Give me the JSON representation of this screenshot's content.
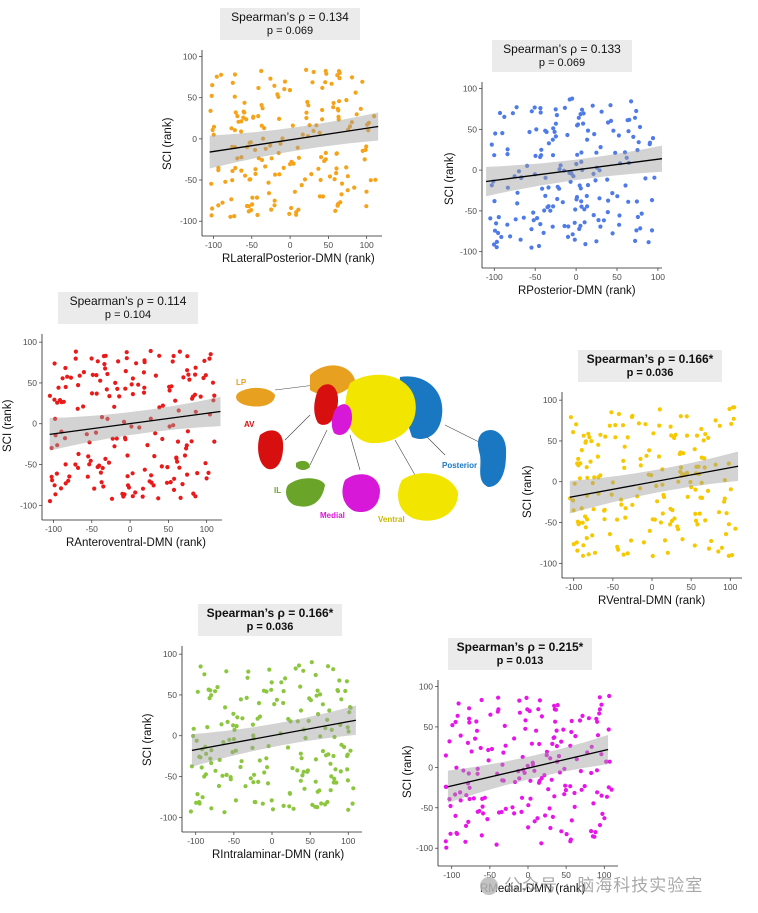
{
  "chart_data": [
    {
      "id": "p1",
      "type": "scatter",
      "color": "#f5a31a",
      "title": "Spearman’s ρ = 0.134",
      "subtitle": "p = 0.069",
      "significant": false,
      "xlabel": "RLateralPosterior-DMN (rank)",
      "ylabel": "SCI (rank)",
      "xlim": [
        -115,
        120
      ],
      "ylim": [
        -118,
        108
      ],
      "xticks": [
        -100,
        -50,
        0,
        50,
        100
      ],
      "yticks": [
        -100,
        -50,
        0,
        50,
        100
      ],
      "fit": {
        "x0": -105,
        "y0": -16,
        "x1": 115,
        "y1": 15,
        "ci": [
          20,
          10,
          17
        ]
      },
      "seed": 11
    },
    {
      "id": "p2",
      "type": "scatter",
      "color": "#4f7be8",
      "title": "Spearman’s ρ = 0.133",
      "subtitle": "p = 0.069",
      "significant": false,
      "xlabel": "RPosterior-DMN (rank)",
      "ylabel": "SCI (rank)",
      "xlim": [
        -115,
        105
      ],
      "ylim": [
        -120,
        108
      ],
      "xticks": [
        -100,
        -50,
        0,
        50,
        100
      ],
      "yticks": [
        -100,
        -50,
        0,
        50,
        100
      ],
      "fit": {
        "x0": -110,
        "y0": -14,
        "x1": 105,
        "y1": 14,
        "ci": [
          18,
          8,
          16
        ]
      },
      "seed": 22
    },
    {
      "id": "p3",
      "type": "scatter",
      "color": "#e81a1a",
      "title": "Spearman’s ρ = 0.114",
      "subtitle": "p = 0.104",
      "significant": false,
      "xlabel": "RAnteroventral-DMN (rank)",
      "ylabel": "SCI (rank)",
      "xlim": [
        -115,
        120
      ],
      "ylim": [
        -118,
        110
      ],
      "xticks": [
        -100,
        -50,
        0,
        50,
        100
      ],
      "yticks": [
        -100,
        -50,
        0,
        50,
        100
      ],
      "fit": {
        "x0": -105,
        "y0": -13,
        "x1": 118,
        "y1": 15,
        "ci": [
          20,
          9,
          18
        ]
      },
      "seed": 33
    },
    {
      "id": "p4",
      "type": "scatter",
      "color": "#f5c800",
      "title": "Spearman’s ρ = 0.166*",
      "subtitle": "p = 0.036",
      "significant": true,
      "xlabel": "RVentral-DMN (rank)",
      "ylabel": "SCI (rank)",
      "xlim": [
        -115,
        115
      ],
      "ylim": [
        -118,
        110
      ],
      "xticks": [
        -100,
        -50,
        0,
        50,
        100
      ],
      "yticks": [
        -100,
        -50,
        0,
        50,
        100
      ],
      "fit": {
        "x0": -105,
        "y0": -19,
        "x1": 110,
        "y1": 19,
        "ci": [
          20,
          9,
          18
        ]
      },
      "seed": 44
    },
    {
      "id": "p5",
      "type": "scatter",
      "color": "#8cc63f",
      "title": "Spearman’s ρ = 0.166*",
      "subtitle": "p = 0.036",
      "significant": true,
      "xlabel": "RIntralaminar-DMN (rank)",
      "ylabel": "SCI (rank)",
      "xlim": [
        -118,
        118
      ],
      "ylim": [
        -118,
        110
      ],
      "xticks": [
        -100,
        -50,
        0,
        50,
        100
      ],
      "yticks": [
        -100,
        -50,
        0,
        50,
        100
      ],
      "fit": {
        "x0": -105,
        "y0": -18,
        "x1": 110,
        "y1": 19,
        "ci": [
          20,
          9,
          18
        ]
      },
      "seed": 55
    },
    {
      "id": "p6",
      "type": "scatter",
      "color": "#e815e8",
      "title": "Spearman’s ρ = 0.215*",
      "subtitle": "p = 0.013",
      "significant": true,
      "xlabel": "RMedial-DMN (rank)",
      "ylabel": "SCI (rank)",
      "xlim": [
        -118,
        118
      ],
      "ylim": [
        -122,
        108
      ],
      "xticks": [
        -100,
        -50,
        0,
        50,
        100
      ],
      "yticks": [
        -100,
        -50,
        0,
        50,
        100
      ],
      "fit": {
        "x0": -105,
        "y0": -24,
        "x1": 105,
        "y1": 22,
        "ci": [
          20,
          9,
          18
        ]
      },
      "seed": 66
    }
  ],
  "brain_labels": {
    "lp": "LP",
    "av": "AV",
    "il": "IL",
    "medial": "Medial",
    "ventral": "Ventral",
    "posterior": "Posterior"
  },
  "brain_colors": {
    "lp": "#e8a020",
    "av": "#d80f0f",
    "il": "#6aa52a",
    "medial": "#d818d8",
    "ventral": "#f2e600",
    "posterior": "#1a78c2"
  },
  "watermark": "公众号 · 脑海科技实验室"
}
